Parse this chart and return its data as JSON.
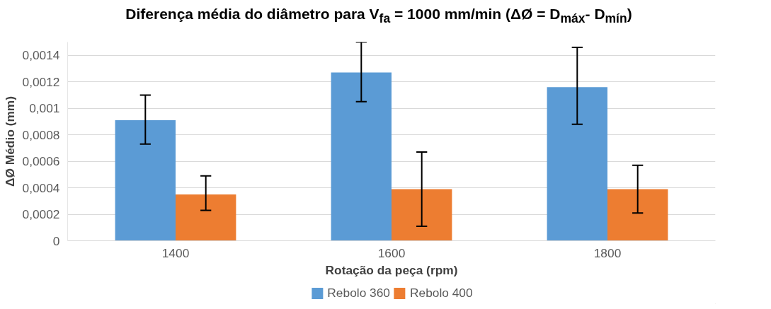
{
  "chart_data": {
    "type": "bar",
    "title": "Diferença média do diâmetro para V$_{fa}$ = 1000 mm/min (ΔØ = D$_{máx}$- D$_{mín}$)",
    "xlabel": "Rotação da peça (rpm)",
    "ylabel": "ΔØ Médio (mm)",
    "categories": [
      "1400",
      "1600",
      "1800"
    ],
    "series": [
      {
        "name": "Rebolo 360",
        "color": "#5b9bd5",
        "values": [
          0.00091,
          0.00127,
          0.00116
        ],
        "errors": [
          [
            0.00073,
            0.0011
          ],
          [
            0.00105,
            0.0015
          ],
          [
            0.00088,
            0.00146
          ]
        ]
      },
      {
        "name": "Rebolo 400",
        "color": "#ed7d31",
        "values": [
          0.00035,
          0.00039,
          0.00039
        ],
        "errors": [
          [
            0.00023,
            0.00049
          ],
          [
            0.00011,
            0.00067
          ],
          [
            0.00021,
            0.00057
          ]
        ]
      }
    ],
    "ylim": [
      0,
      0.0015
    ],
    "yticks": [
      0,
      {
        "value": 0.0002,
        "label": "0,0002"
      },
      {
        "value": 0.0004,
        "label": "0,0004"
      },
      {
        "value": 0.0006,
        "label": "0,0006"
      },
      {
        "value": 0.0008,
        "label": "0,0008"
      },
      {
        "value": 0.001,
        "label": "0,001"
      },
      {
        "value": 0.0012,
        "label": "0,0012"
      },
      {
        "value": 0.0014,
        "label": "0,0014"
      }
    ],
    "grid": "y",
    "legend": "bottom"
  }
}
